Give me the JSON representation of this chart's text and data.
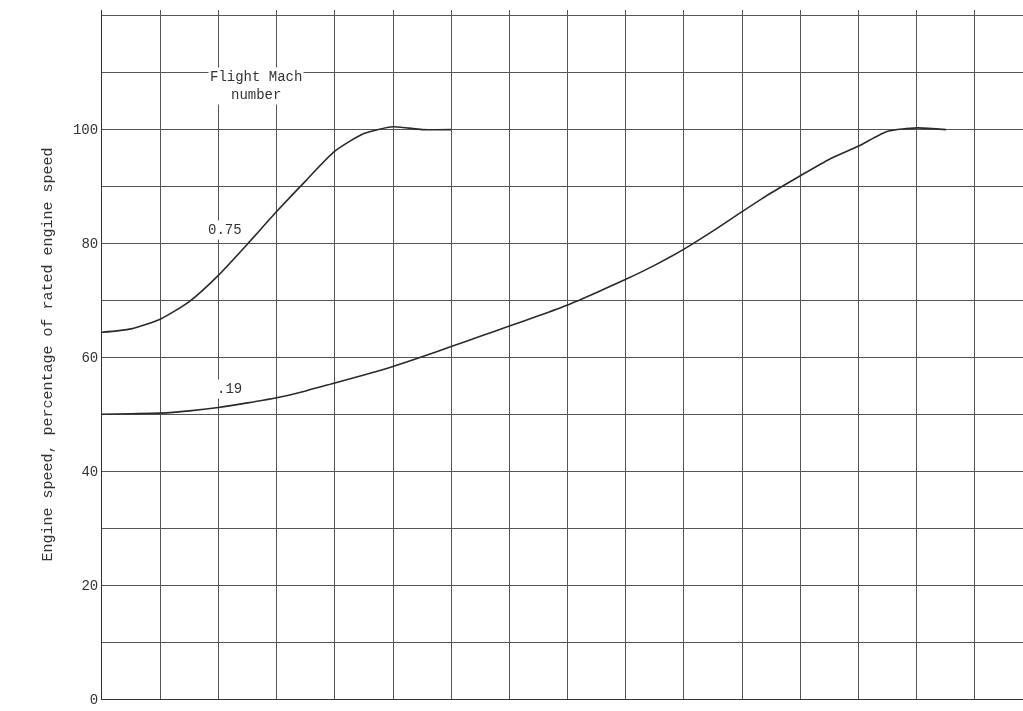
{
  "chart_data": {
    "type": "line",
    "ylabel": "Engine speed, percentage of rated engine speed",
    "legend_title": "Flight Mach\nnumber",
    "categories": [
      null,
      null,
      null,
      null,
      null,
      null,
      null,
      null,
      null,
      null,
      null,
      null,
      null,
      null,
      null,
      null,
      null,
      null,
      null,
      null,
      null,
      null,
      null,
      null,
      null,
      null,
      null,
      null,
      null,
      null,
      null,
      null
    ],
    "series": [
      {
        "name": "0.75",
        "color": "#2a2a2a",
        "values": [
          64.4,
          65,
          66.7,
          69.8,
          74.4,
          79.9,
          85.6,
          91,
          96.2,
          99.3,
          100.5,
          100,
          100,
          null,
          null,
          null,
          null,
          null,
          null,
          null,
          null,
          null,
          null,
          null,
          null,
          null,
          null,
          null,
          null,
          null,
          null,
          null
        ]
      },
      {
        "name": ".19",
        "color": "#2a2a2a",
        "values": [
          50,
          50.1,
          50.2,
          50.6,
          51.2,
          52,
          52.9,
          54.1,
          55.5,
          56.9,
          58.4,
          60.1,
          61.9,
          63.7,
          65.5,
          67.3,
          69.2,
          71.4,
          73.7,
          76.2,
          79,
          82.2,
          85.6,
          88.9,
          91.9,
          94.8,
          97.1,
          99.7,
          100.3,
          100,
          null,
          null
        ]
      }
    ],
    "ylim": [
      0,
      121
    ],
    "yticks": [
      0,
      {
        "value": 10,
        "label": null
      },
      20,
      {
        "value": 30,
        "label": null
      },
      40,
      {
        "value": 50,
        "label": null
      },
      60,
      {
        "value": 70,
        "label": null
      },
      80,
      {
        "value": 90,
        "label": null
      },
      100,
      {
        "value": 110,
        "label": null
      },
      {
        "value": 120,
        "label": null
      }
    ],
    "grid": true,
    "legend": false,
    "marker": "none",
    "line_style": "solid"
  }
}
